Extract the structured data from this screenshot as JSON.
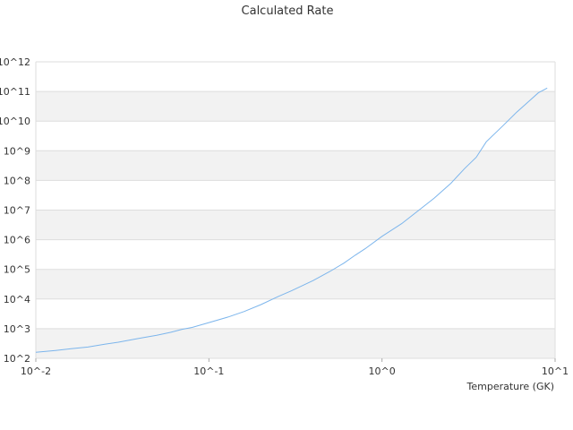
{
  "chart_data": {
    "type": "line",
    "title": "Calculated Rate",
    "xlabel": "Temperature (GK)",
    "ylabel": "",
    "x_scale": "log",
    "y_scale": "log",
    "xlim": [
      0.01,
      10
    ],
    "ylim": [
      100,
      1000000000000
    ],
    "x_ticks": [
      "10^-2",
      "10^-1",
      "10^0",
      "10^1"
    ],
    "y_ticks": [
      "10^2",
      "10^3",
      "10^4",
      "10^5",
      "10^6",
      "10^7",
      "10^8",
      "10^9",
      "10^10",
      "10^11",
      "10^12"
    ],
    "grid": "alternating horizontal bands",
    "legend": "none",
    "colors": {
      "line": "#7cb5ec",
      "band": "#f2f2f2",
      "grid": "#dddddd"
    },
    "series": [
      {
        "x": [
          0.01,
          0.013,
          0.016,
          0.02,
          0.025,
          0.03,
          0.04,
          0.05,
          0.06,
          0.07,
          0.08,
          0.1,
          0.13,
          0.16,
          0.2,
          0.25,
          0.3,
          0.4,
          0.5,
          0.6,
          0.7,
          0.8,
          1.0,
          1.3,
          1.6,
          2.0,
          2.5,
          3.0,
          3.5,
          4.0,
          5.0,
          6.0,
          7.0,
          8.0,
          9.0
        ],
        "y": [
          160,
          185,
          210,
          240,
          300,
          350,
          480,
          600,
          750,
          950,
          1100,
          1600,
          2500,
          3800,
          6500,
          12000,
          19000,
          42000,
          85000,
          160000,
          300000,
          500000,
          1300000,
          3500000,
          9000000,
          25000000,
          80000000,
          250000000,
          600000000,
          2000000000,
          7000000000,
          20000000000,
          45000000000,
          90000000000,
          130000000000
        ]
      }
    ]
  }
}
